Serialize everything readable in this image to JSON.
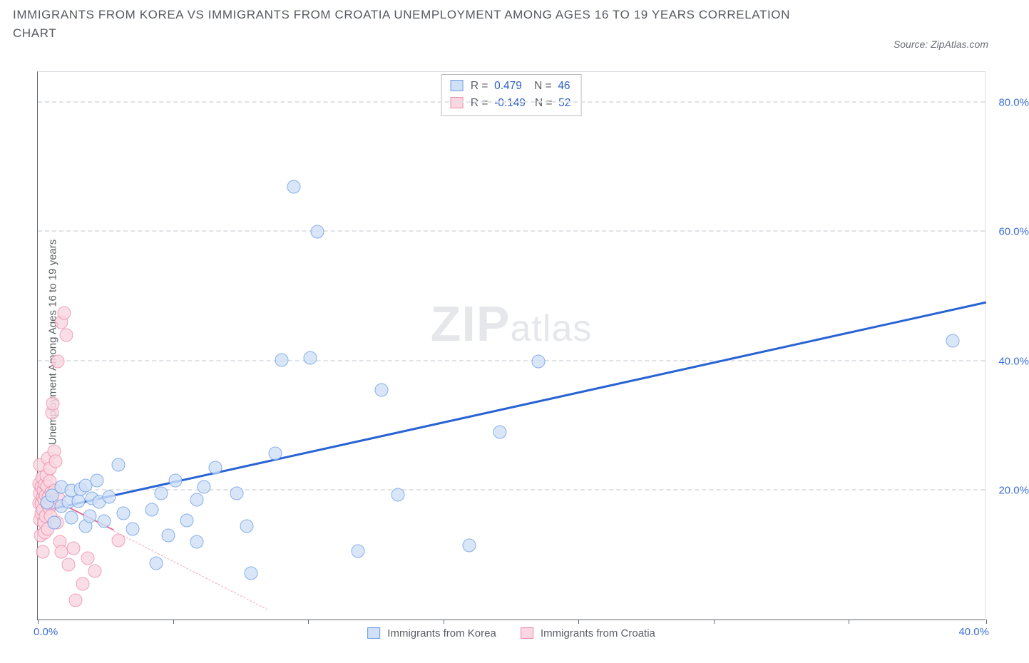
{
  "title": "IMMIGRANTS FROM KOREA VS IMMIGRANTS FROM CROATIA UNEMPLOYMENT AMONG AGES 16 TO 19 YEARS CORRELATION CHART",
  "source": "Source: ZipAtlas.com",
  "y_axis_label": "Unemployment Among Ages 16 to 19 years",
  "watermark_bold": "ZIP",
  "watermark_light": "atlas",
  "x": {
    "min": 0,
    "max": 40,
    "min_label": "0.0%",
    "max_label": "40.0%",
    "tick_positions": [
      0,
      5.7,
      11.4,
      17.1,
      22.8,
      28.5,
      34.2,
      40
    ]
  },
  "y": {
    "min": 0,
    "max": 85,
    "grid": [
      {
        "v": 20,
        "label": "20.0%"
      },
      {
        "v": 40,
        "label": "40.0%"
      },
      {
        "v": 60,
        "label": "60.0%"
      },
      {
        "v": 80,
        "label": "80.0%"
      }
    ]
  },
  "series": {
    "blue": {
      "name": "Immigrants from Korea",
      "fill": "#cfe0f7",
      "stroke": "#6a9be6",
      "radius": 9.5,
      "opacity": 0.8,
      "stats": {
        "R": "0.479",
        "N": "46"
      },
      "trend": {
        "x1": 0,
        "y1": 16.5,
        "x2": 40,
        "y2": 49,
        "color": "#2763d4",
        "width": 3
      },
      "points": [
        [
          0.4,
          18.1
        ],
        [
          0.6,
          19.2
        ],
        [
          0.7,
          15.0
        ],
        [
          1.0,
          17.5
        ],
        [
          1.0,
          20.5
        ],
        [
          1.3,
          18.2
        ],
        [
          1.4,
          20.0
        ],
        [
          1.4,
          15.8
        ],
        [
          1.7,
          18.3
        ],
        [
          1.8,
          20.2
        ],
        [
          2.0,
          14.5
        ],
        [
          2.0,
          20.8
        ],
        [
          2.2,
          16.0
        ],
        [
          2.3,
          18.8
        ],
        [
          2.5,
          21.5
        ],
        [
          2.6,
          18.2
        ],
        [
          2.8,
          15.2
        ],
        [
          3.0,
          19.0
        ],
        [
          3.4,
          24.0
        ],
        [
          3.6,
          16.4
        ],
        [
          4.0,
          14.0
        ],
        [
          4.8,
          17.0
        ],
        [
          5.0,
          8.7
        ],
        [
          5.2,
          19.5
        ],
        [
          5.5,
          13.0
        ],
        [
          5.8,
          21.5
        ],
        [
          6.3,
          15.3
        ],
        [
          6.7,
          12.0
        ],
        [
          6.7,
          18.5
        ],
        [
          7.0,
          20.5
        ],
        [
          7.5,
          23.5
        ],
        [
          8.4,
          19.5
        ],
        [
          8.8,
          14.5
        ],
        [
          9.0,
          7.2
        ],
        [
          10.0,
          25.7
        ],
        [
          10.3,
          40.2
        ],
        [
          10.8,
          67.0
        ],
        [
          11.5,
          40.5
        ],
        [
          11.8,
          60.0
        ],
        [
          13.5,
          10.6
        ],
        [
          14.5,
          35.5
        ],
        [
          15.2,
          19.3
        ],
        [
          18.2,
          11.5
        ],
        [
          19.5,
          29.0
        ],
        [
          21.1,
          40.0
        ],
        [
          38.6,
          43.2
        ]
      ]
    },
    "pink": {
      "name": "Immigrants from Croatia",
      "fill": "#fad7e2",
      "stroke": "#ed8aa7",
      "radius": 9.5,
      "opacity": 0.8,
      "stats": {
        "R": "-0.149",
        "N": "52"
      },
      "trend_solid": {
        "x1": 0,
        "y1": 19.6,
        "x2": 3.2,
        "y2": 13.7,
        "color": "#e76d95",
        "width": 2
      },
      "trend_dashed": {
        "x1": 3.2,
        "y1": 13.7,
        "x2": 9.7,
        "y2": 1.5,
        "color": "#f0a7bc",
        "width": 1.5
      },
      "points": [
        [
          0.05,
          18.0
        ],
        [
          0.05,
          21.0
        ],
        [
          0.08,
          15.5
        ],
        [
          0.1,
          19.5
        ],
        [
          0.1,
          24.0
        ],
        [
          0.12,
          13.0
        ],
        [
          0.14,
          18.0
        ],
        [
          0.14,
          20.5
        ],
        [
          0.16,
          16.5
        ],
        [
          0.18,
          22.0
        ],
        [
          0.2,
          10.5
        ],
        [
          0.2,
          19.0
        ],
        [
          0.22,
          17.0
        ],
        [
          0.24,
          20.0
        ],
        [
          0.26,
          15.0
        ],
        [
          0.28,
          18.5
        ],
        [
          0.3,
          21.0
        ],
        [
          0.3,
          13.5
        ],
        [
          0.32,
          19.2
        ],
        [
          0.34,
          16.0
        ],
        [
          0.36,
          22.3
        ],
        [
          0.38,
          18.0
        ],
        [
          0.4,
          20.6
        ],
        [
          0.42,
          25.0
        ],
        [
          0.42,
          14.0
        ],
        [
          0.45,
          19.0
        ],
        [
          0.48,
          17.3
        ],
        [
          0.5,
          21.4
        ],
        [
          0.52,
          23.4
        ],
        [
          0.55,
          16.0
        ],
        [
          0.58,
          19.6
        ],
        [
          0.6,
          32.0
        ],
        [
          0.62,
          33.5
        ],
        [
          0.64,
          18.2
        ],
        [
          0.7,
          26.0
        ],
        [
          0.72,
          20.0
        ],
        [
          0.75,
          24.5
        ],
        [
          0.8,
          15.0
        ],
        [
          0.85,
          40.0
        ],
        [
          0.9,
          18.7
        ],
        [
          0.92,
          12.0
        ],
        [
          1.0,
          10.5
        ],
        [
          1.0,
          46.0
        ],
        [
          1.1,
          47.5
        ],
        [
          1.2,
          44.0
        ],
        [
          1.3,
          8.5
        ],
        [
          1.5,
          11.0
        ],
        [
          1.6,
          3.0
        ],
        [
          1.9,
          5.5
        ],
        [
          2.1,
          9.5
        ],
        [
          2.4,
          7.5
        ],
        [
          3.4,
          12.3
        ]
      ]
    }
  },
  "stat_box_labels": {
    "R": "R =",
    "N": "N ="
  }
}
